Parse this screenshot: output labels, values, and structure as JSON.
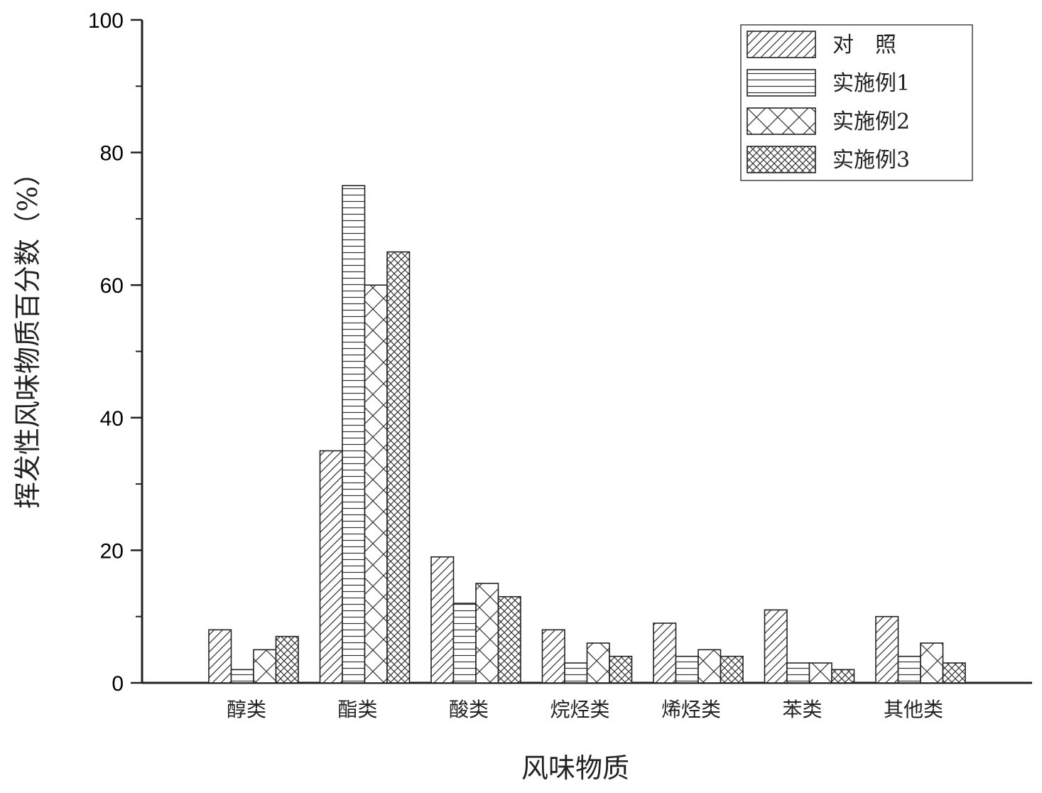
{
  "chart_data": {
    "type": "bar",
    "title": "",
    "xlabel": "风味物质",
    "ylabel": "挥发性风味物质百分数（%）",
    "ylim": [
      0,
      100
    ],
    "yticks": [
      "0",
      "20",
      "40",
      "60",
      "80",
      "100"
    ],
    "categories": [
      "醇类",
      "酯类",
      "酸类",
      "烷烃类",
      "烯烃类",
      "苯类",
      "其他类"
    ],
    "series": [
      {
        "name": "对　照",
        "pattern": "diagonal",
        "values": [
          8,
          35,
          19,
          8,
          9,
          11,
          10
        ]
      },
      {
        "name": "实施例1",
        "pattern": "horizontal",
        "values": [
          2,
          75,
          12,
          3,
          4,
          3,
          4
        ]
      },
      {
        "name": "实施例2",
        "pattern": "cross",
        "values": [
          5,
          60,
          15,
          6,
          5,
          3,
          6
        ]
      },
      {
        "name": "实施例3",
        "pattern": "dense-cross",
        "values": [
          7,
          65,
          13,
          4,
          4,
          2,
          3
        ]
      }
    ],
    "legend_position": "top-right",
    "grid": false,
    "bar_fill": "#ffffff",
    "bar_stroke": "#222222"
  }
}
